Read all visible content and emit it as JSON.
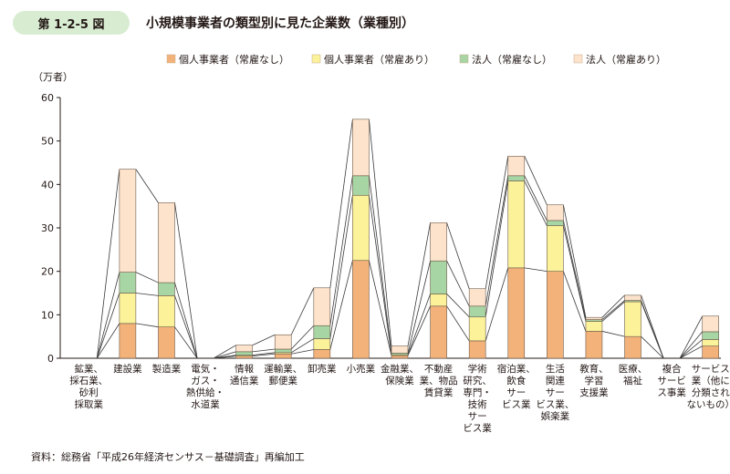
{
  "figure": {
    "number": "第 1-2-5 図",
    "title": "小規模事業者の類型別に見た企業数（業種別）",
    "source": "資料：総務省「平成26年経済センサス－基礎調査」再編加工"
  },
  "chart_data": {
    "type": "bar",
    "stacked": true,
    "connector_lines": true,
    "y_unit": "（万者）",
    "ylim": [
      0,
      60
    ],
    "yticks": [
      0,
      10,
      20,
      30,
      40,
      50,
      60
    ],
    "legend_position": "top",
    "categories": [
      [
        "鉱業、",
        "採石業、",
        "砂利",
        "採取業"
      ],
      [
        "建設業"
      ],
      [
        "製造業"
      ],
      [
        "電気・",
        "ガス・",
        "熱供給・",
        "水道業"
      ],
      [
        "情報",
        "通信業"
      ],
      [
        "運輸業、",
        "郵便業"
      ],
      [
        "卸売業"
      ],
      [
        "小売業"
      ],
      [
        "金融業、",
        "保険業"
      ],
      [
        "不動産",
        "業、物品",
        "賃貸業"
      ],
      [
        "学術",
        "研究、",
        "専門・",
        "技術",
        "サー",
        "ビス業"
      ],
      [
        "宿泊業、",
        "飲食",
        "サー",
        "ビス業"
      ],
      [
        "生活",
        "関連",
        "サー",
        "ビス業、",
        "娯楽業"
      ],
      [
        "教育、",
        "学習",
        "支援業"
      ],
      [
        "医療、",
        "福祉"
      ],
      [
        "複合",
        "サービ",
        "ス事業"
      ],
      [
        "サービス",
        "業（他に",
        "分類され",
        "ないもの）"
      ]
    ],
    "series": [
      {
        "name": "個人事業者（常雇なし）",
        "color": "#f3b27a",
        "values": [
          0.0,
          8.0,
          7.2,
          0.0,
          0.5,
          1.0,
          2.0,
          22.5,
          0.6,
          12.0,
          4.0,
          20.8,
          20.0,
          6.2,
          5.0,
          0.0,
          2.8
        ]
      },
      {
        "name": "個人事業者（常雇あり）",
        "color": "#fbf29a",
        "values": [
          0.0,
          7.0,
          7.2,
          0.0,
          0.2,
          0.3,
          2.5,
          15.0,
          0.2,
          2.8,
          5.5,
          20.0,
          10.5,
          2.3,
          8.0,
          0.0,
          1.5
        ]
      },
      {
        "name": "法人（常雇なし）",
        "color": "#a8d5a4",
        "values": [
          0.0,
          4.8,
          3.0,
          0.0,
          0.8,
          0.8,
          3.0,
          4.5,
          0.4,
          7.6,
          2.5,
          1.2,
          1.2,
          0.4,
          0.3,
          0.0,
          1.8
        ]
      },
      {
        "name": "法人（常雇あり）",
        "color": "#fde3cc",
        "values": [
          0.0,
          23.7,
          18.4,
          0.0,
          1.5,
          3.3,
          8.7,
          13.0,
          1.6,
          8.8,
          4.0,
          4.5,
          3.6,
          0.5,
          1.2,
          0.0,
          3.6
        ]
      }
    ]
  }
}
